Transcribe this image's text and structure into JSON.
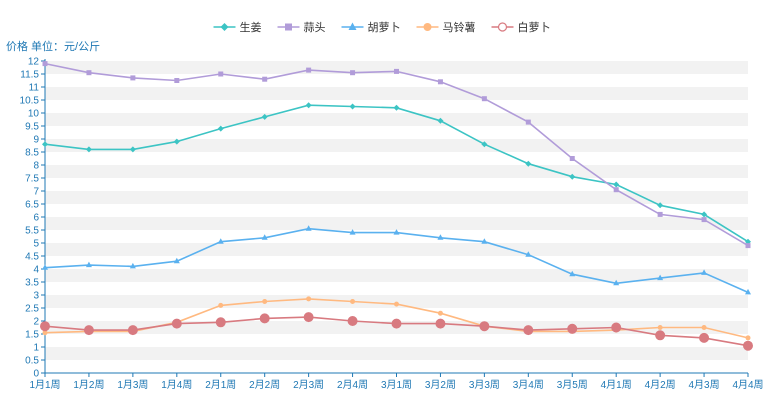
{
  "chart_data": {
    "type": "line",
    "y_unit_label": "价格 单位：元/公斤",
    "categories": [
      "1月1周",
      "1月2周",
      "1月3周",
      "1月4周",
      "2月1周",
      "2月2周",
      "2月3周",
      "2月4周",
      "3月1周",
      "3月2周",
      "3月3周",
      "3月4周",
      "3月5周",
      "4月1周",
      "4月2周",
      "4月3周",
      "4月4周"
    ],
    "yticks": [
      "0",
      "0.5",
      "1",
      "1.5",
      "2",
      "2.5",
      "3",
      "3.5",
      "4",
      "4.5",
      "5",
      "5.5",
      "6",
      "6.5",
      "7",
      "7.5",
      "8",
      "8.5",
      "9",
      "9.5",
      "10",
      "10.5",
      "11",
      "11.5",
      "12"
    ],
    "ylim": [
      0,
      12
    ],
    "grid": "horizontal bands",
    "legend_position": "top-center",
    "series": [
      {
        "name": "生姜",
        "color": "#3cc4c4",
        "marker": "diamond",
        "values": [
          8.8,
          8.6,
          8.6,
          8.9,
          9.4,
          9.85,
          10.3,
          10.25,
          10.2,
          9.7,
          8.8,
          8.05,
          7.55,
          7.25,
          6.45,
          6.1,
          5.05
        ]
      },
      {
        "name": "蒜头",
        "color": "#b19cd9",
        "marker": "square",
        "values": [
          11.9,
          11.55,
          11.35,
          11.25,
          11.5,
          11.3,
          11.65,
          11.55,
          11.6,
          11.2,
          10.55,
          9.65,
          8.25,
          7.05,
          6.1,
          5.9,
          4.9
        ]
      },
      {
        "name": "胡萝卜",
        "color": "#5ab1ef",
        "marker": "triangle",
        "values": [
          4.05,
          4.15,
          4.1,
          4.3,
          5.05,
          5.2,
          5.55,
          5.4,
          5.4,
          5.2,
          5.05,
          4.55,
          3.8,
          3.45,
          3.65,
          3.85,
          3.1
        ]
      },
      {
        "name": "马铃薯",
        "color": "#ffb980",
        "marker": "circle",
        "values": [
          1.55,
          1.6,
          1.6,
          1.95,
          2.6,
          2.75,
          2.85,
          2.75,
          2.65,
          2.3,
          1.8,
          1.6,
          1.6,
          1.65,
          1.75,
          1.75,
          1.35
        ]
      },
      {
        "name": "白萝卜",
        "color": "#d87a80",
        "marker": "hollow-circle",
        "values": [
          1.8,
          1.65,
          1.65,
          1.9,
          1.95,
          2.1,
          2.15,
          2.0,
          1.9,
          1.9,
          1.8,
          1.65,
          1.7,
          1.75,
          1.45,
          1.35,
          1.05
        ]
      }
    ]
  }
}
